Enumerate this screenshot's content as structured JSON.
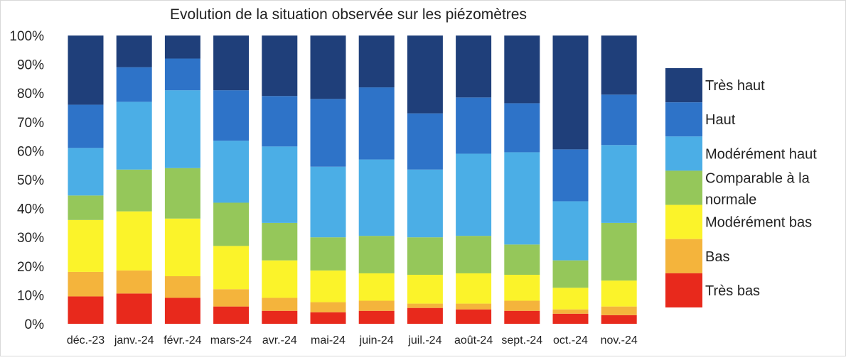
{
  "chart_data": {
    "type": "bar",
    "stacked": true,
    "percent": true,
    "title": "Evolution de la situation observée sur les  piézomètres",
    "xlabel": "",
    "ylabel": "",
    "ylim": [
      0,
      100
    ],
    "yticks": [
      "0%",
      "10%",
      "20%",
      "30%",
      "40%",
      "50%",
      "60%",
      "70%",
      "80%",
      "90%",
      "100%"
    ],
    "legend_position": "right",
    "categories": [
      "déc.-23",
      "janv.-24",
      "févr.-24",
      "mars-24",
      "avr.-24",
      "mai-24",
      "juin-24",
      "juil.-24",
      "août-24",
      "sept.-24",
      "oct.-24",
      "nov.-24"
    ],
    "series": [
      {
        "name": "Très bas",
        "color": "#e8291c",
        "values": [
          9.5,
          10.5,
          9,
          6,
          4.5,
          4,
          4.5,
          5.5,
          5,
          4.5,
          3.5,
          3
        ]
      },
      {
        "name": "Bas",
        "color": "#f4b43c",
        "values": [
          8.5,
          8,
          7.5,
          6,
          4.5,
          3.5,
          3.5,
          1.5,
          2,
          3.5,
          1.5,
          3
        ]
      },
      {
        "name": "Modérément bas",
        "color": "#fbf32a",
        "values": [
          18,
          20.5,
          20,
          15,
          13,
          11,
          9.5,
          10,
          10.5,
          9,
          7.5,
          9
        ]
      },
      {
        "name": "Comparable à la normale",
        "color": "#95c75a",
        "values": [
          8.5,
          14.5,
          17.5,
          15,
          13,
          11.5,
          13,
          13,
          13,
          10.5,
          9.5,
          20
        ]
      },
      {
        "name": "Modérément haut",
        "color": "#4baee6",
        "values": [
          16.5,
          23.5,
          27,
          21.5,
          26.5,
          24.5,
          26.5,
          23.5,
          28.5,
          32,
          20.5,
          27
        ]
      },
      {
        "name": "Haut",
        "color": "#2e73c8",
        "values": [
          15,
          12,
          11,
          17.5,
          17.5,
          23.5,
          25,
          19.5,
          19.5,
          17,
          18,
          17.5
        ]
      },
      {
        "name": "Très haut",
        "color": "#1f3f7a",
        "values": [
          24,
          11,
          8,
          19,
          21,
          22,
          18,
          27,
          21.5,
          23.5,
          39.5,
          20.5
        ]
      }
    ]
  }
}
